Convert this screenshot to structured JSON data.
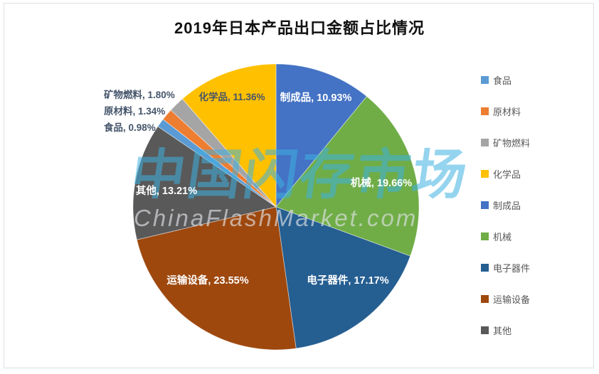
{
  "window": {
    "title": "2019年日本产品出口金额占比情况"
  },
  "watermark": {
    "cn_text": "中国闪存市场",
    "en_text": "ChinaFlashMarket.com"
  },
  "chart_data": {
    "type": "pie",
    "title": "2019年日本产品出口金额占比情况",
    "unit": "percent",
    "direction": "clockwise",
    "start_angle_deg": 0,
    "legend_position": "right",
    "slices": [
      {
        "name": "制成品",
        "value": 10.93,
        "label": "制成品, 10.93%",
        "color": "#4472C4",
        "label_style": "inside-white"
      },
      {
        "name": "机械",
        "value": 19.66,
        "label": "机械, 19.66%",
        "color": "#70AD47",
        "label_style": "inside-white"
      },
      {
        "name": "电子器件",
        "value": 17.17,
        "label": "电子器件, 17.17%",
        "color": "#255E91",
        "label_style": "inside-white"
      },
      {
        "name": "运输设备",
        "value": 23.55,
        "label": "运输设备, 23.55%",
        "color": "#9E480E",
        "label_style": "inside-white"
      },
      {
        "name": "其他",
        "value": 13.21,
        "label": "其他, 13.21%",
        "color": "#595959",
        "label_style": "inside-white"
      },
      {
        "name": "食品",
        "value": 0.98,
        "label": "食品, 0.98%",
        "color": "#5B9BD5",
        "label_style": "outside-dark"
      },
      {
        "name": "原材料",
        "value": 1.34,
        "label": "原材料, 1.34%",
        "color": "#ED7D31",
        "label_style": "outside-dark"
      },
      {
        "name": "矿物燃料",
        "value": 1.8,
        "label": "矿物燃料, 1.80%",
        "color": "#A5A5A5",
        "label_style": "outside-dark"
      },
      {
        "name": "化学品",
        "value": 11.36,
        "label": "化学品, 11.36%",
        "color": "#FFC000",
        "label_style": "inside-dark"
      }
    ],
    "legend": [
      {
        "label": "食品",
        "color": "#5B9BD5"
      },
      {
        "label": "原材料",
        "color": "#ED7D31"
      },
      {
        "label": "矿物燃料",
        "color": "#A5A5A5"
      },
      {
        "label": "化学品",
        "color": "#FFC000"
      },
      {
        "label": "制成品",
        "color": "#4472C4"
      },
      {
        "label": "机械",
        "color": "#70AD47"
      },
      {
        "label": "电子器件",
        "color": "#255E91"
      },
      {
        "label": "运输设备",
        "color": "#9E480E"
      },
      {
        "label": "其他",
        "color": "#595959"
      }
    ],
    "label_text_colors": {
      "inside": "#FFFFFF",
      "outside": "#44546A"
    }
  }
}
